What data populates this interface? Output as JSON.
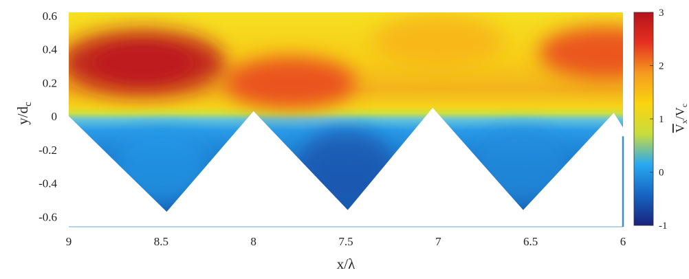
{
  "chart_data": {
    "type": "heatmap",
    "title": "",
    "xlabel": "x/λ",
    "ylabel_main": "y/d",
    "ylabel_sub": "c",
    "colorbar_label_num": "V",
    "colorbar_label_num_sub": "x",
    "colorbar_label_den": "V",
    "colorbar_label_den_sub": "c",
    "x_reversed": true,
    "xlim": [
      9,
      6
    ],
    "ylim": [
      -0.66,
      0.62
    ],
    "x_ticks": [
      9,
      8.5,
      8,
      7.5,
      7,
      6.5,
      6
    ],
    "x_tick_labels": [
      "9",
      "8.5",
      "8",
      "7.5",
      "7",
      "6.5",
      "6"
    ],
    "y_ticks": [
      -0.6,
      -0.4,
      -0.2,
      0,
      0.2,
      0.4,
      0.6
    ],
    "y_tick_labels": [
      "-0.6",
      "-0.4",
      "-0.2",
      "0",
      "0.2",
      "0.4",
      "0.6"
    ],
    "colorbar_ticks": [
      -1,
      0,
      1,
      2,
      3
    ],
    "colorbar_tick_labels": [
      "-1",
      "0",
      "1",
      "2",
      "3"
    ],
    "colorbar_range": [
      -1,
      3
    ],
    "colormap": "jet",
    "grid": false,
    "boundary_vertices": [
      {
        "x": 9.0,
        "y": 0.0
      },
      {
        "x": 8.47,
        "y": -0.57
      },
      {
        "x": 8.0,
        "y": 0.03
      },
      {
        "x": 7.49,
        "y": -0.56
      },
      {
        "x": 7.03,
        "y": 0.05
      },
      {
        "x": 6.54,
        "y": -0.56
      },
      {
        "x": 6.05,
        "y": 0.02
      },
      {
        "x": 5.97,
        "y": -0.12
      }
    ],
    "field_regions": [
      {
        "name": "high-velocity core",
        "x": 8.6,
        "y": 0.32,
        "value": 2.9
      },
      {
        "name": "jet band",
        "x": 7.8,
        "y": 0.2,
        "value": 2.3
      },
      {
        "name": "outer flow",
        "x": 7.0,
        "y": 0.45,
        "value": 1.6
      },
      {
        "name": "right core",
        "x": 6.1,
        "y": 0.38,
        "value": 2.3
      },
      {
        "name": "cavity 1",
        "x": 8.5,
        "y": -0.3,
        "value": 0.0
      },
      {
        "name": "cavity 2",
        "x": 7.5,
        "y": -0.3,
        "value": -0.6
      },
      {
        "name": "cavity 3",
        "x": 6.55,
        "y": -0.3,
        "value": -0.1
      }
    ]
  },
  "colors": {
    "jet_stops": [
      "#1a237e",
      "#1565c0",
      "#29a8f0",
      "#c8dc3e",
      "#fad40f",
      "#f59b1f",
      "#e53120",
      "#b5121b"
    ]
  }
}
